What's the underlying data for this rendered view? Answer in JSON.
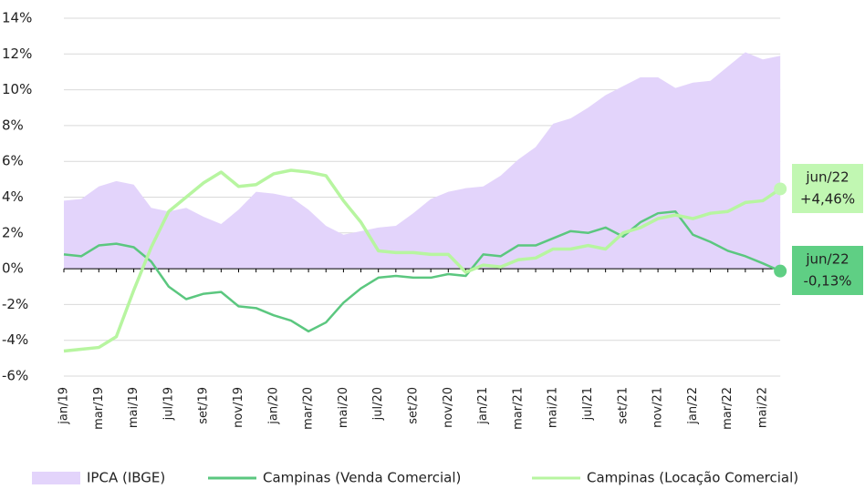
{
  "chart_data": {
    "type": "line",
    "categories": [
      "jan/19",
      null,
      "mar/19",
      null,
      "mai/19",
      null,
      "jul/19",
      null,
      "set/19",
      null,
      "nov/19",
      null,
      "jan/20",
      null,
      "mar/20",
      null,
      "mai/20",
      null,
      "jul/20",
      null,
      "set/20",
      null,
      "nov/20",
      null,
      "jan/21",
      null,
      "mar/21",
      null,
      "mai/21",
      null,
      "jul/21",
      null,
      "set/21",
      null,
      "nov/21",
      null,
      "jan/22",
      null,
      "mar/22",
      null,
      "mai/22",
      null
    ],
    "series": [
      {
        "name": "IPCA (IBGE)",
        "kind": "area",
        "color": "#e3d4fb",
        "values": [
          3.8,
          3.9,
          4.6,
          4.9,
          4.7,
          3.4,
          3.2,
          3.4,
          2.9,
          2.5,
          3.3,
          4.3,
          4.2,
          4.0,
          3.3,
          2.4,
          1.9,
          2.1,
          2.3,
          2.4,
          3.1,
          3.9,
          4.3,
          4.5,
          4.6,
          5.2,
          6.1,
          6.8,
          8.1,
          8.4,
          9.0,
          9.7,
          10.2,
          10.7,
          10.7,
          10.1,
          10.4,
          10.5,
          11.3,
          12.1,
          11.7,
          11.9
        ]
      },
      {
        "name": "Campinas (Venda Comercial)",
        "kind": "line",
        "color": "#5bc77f",
        "values": [
          0.8,
          0.7,
          1.3,
          1.4,
          1.2,
          0.4,
          -1.0,
          -1.7,
          -1.4,
          -1.3,
          -2.1,
          -2.2,
          -2.6,
          -2.9,
          -3.5,
          -3.0,
          -1.9,
          -1.1,
          -0.5,
          -0.4,
          -0.5,
          -0.5,
          -0.3,
          -0.4,
          0.8,
          0.7,
          1.3,
          1.3,
          1.7,
          2.1,
          2.0,
          2.3,
          1.8,
          2.6,
          3.1,
          3.2,
          1.9,
          1.5,
          1.0,
          0.7,
          0.3,
          -0.13
        ]
      },
      {
        "name": "Campinas (Locação Comercial)",
        "kind": "line",
        "color": "#b7f5a0",
        "values": [
          -4.6,
          -4.5,
          -4.4,
          -3.8,
          -1.2,
          1.2,
          3.2,
          4.0,
          4.8,
          5.4,
          4.6,
          4.7,
          5.3,
          5.5,
          5.4,
          5.2,
          3.8,
          2.6,
          1.0,
          0.9,
          0.9,
          0.8,
          0.8,
          -0.2,
          0.2,
          0.1,
          0.5,
          0.6,
          1.1,
          1.1,
          1.3,
          1.1,
          2.0,
          2.3,
          2.8,
          3.0,
          2.8,
          3.1,
          3.2,
          3.7,
          3.8,
          4.46
        ]
      }
    ],
    "annotations": [
      {
        "series": 2,
        "color": "#c1f7b2",
        "lines": [
          "jun/22",
          "+4,46%"
        ]
      },
      {
        "series": 1,
        "color": "#5fcf84",
        "lines": [
          "jun/22",
          "-0,13%"
        ]
      }
    ],
    "ylim": [
      -6,
      14
    ],
    "yticks": [
      {
        "value": -6,
        "label": "-6%"
      },
      {
        "value": -4,
        "label": "-4%"
      },
      {
        "value": -2,
        "label": "-2%"
      },
      {
        "value": 0,
        "label": "0%"
      },
      {
        "value": 2,
        "label": "2%"
      },
      {
        "value": 4,
        "label": "4%"
      },
      {
        "value": 6,
        "label": "6%"
      },
      {
        "value": 8,
        "label": "8%"
      },
      {
        "value": 10,
        "label": "10%"
      },
      {
        "value": 12,
        "label": "12%"
      },
      {
        "value": 14,
        "label": "14%"
      }
    ],
    "grid": true,
    "legend": "bottom"
  }
}
